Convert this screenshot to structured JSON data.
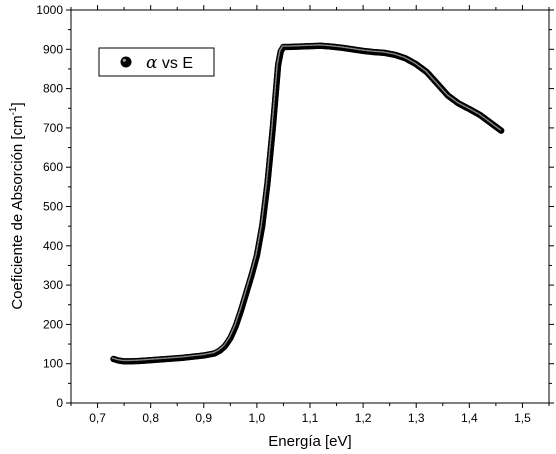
{
  "chart_data": {
    "type": "scatter",
    "title": "",
    "xlabel": "Energía [eV]",
    "ylabel_main": "Coeficiente de Absorción [cm",
    "ylabel_sup": "-1",
    "ylabel_close": "]",
    "xlim": [
      0.65,
      1.55
    ],
    "ylim": [
      0,
      1000
    ],
    "xticks": [
      "0,7",
      "0,8",
      "0,9",
      "1,0",
      "1,1",
      "1,2",
      "1,3",
      "1,4",
      "1,5"
    ],
    "xtick_values": [
      0.7,
      0.8,
      0.9,
      1.0,
      1.1,
      1.2,
      1.3,
      1.4,
      1.5
    ],
    "yticks": [
      "0",
      "100",
      "200",
      "300",
      "400",
      "500",
      "600",
      "700",
      "800",
      "900",
      "1000"
    ],
    "ytick_values": [
      0,
      100,
      200,
      300,
      400,
      500,
      600,
      700,
      800,
      900,
      1000
    ],
    "grid": false,
    "legend_placement": "top-left",
    "series": [
      {
        "name_symbol": "α",
        "name_rest": " vs E",
        "color": "#000000",
        "x": [
          0.73,
          0.74,
          0.75,
          0.76,
          0.78,
          0.8,
          0.82,
          0.84,
          0.86,
          0.88,
          0.9,
          0.92,
          0.93,
          0.94,
          0.95,
          0.96,
          0.97,
          0.98,
          0.99,
          1.0,
          1.01,
          1.02,
          1.03,
          1.04,
          1.045,
          1.05,
          1.06,
          1.08,
          1.1,
          1.12,
          1.14,
          1.16,
          1.18,
          1.2,
          1.22,
          1.24,
          1.26,
          1.28,
          1.3,
          1.32,
          1.34,
          1.36,
          1.38,
          1.4,
          1.42,
          1.44,
          1.46
        ],
        "y": [
          112,
          108,
          106,
          106,
          107,
          109,
          111,
          113,
          115,
          118,
          121,
          126,
          133,
          145,
          165,
          195,
          235,
          280,
          325,
          375,
          450,
          560,
          700,
          860,
          895,
          906,
          906,
          907,
          908,
          909,
          907,
          904,
          900,
          896,
          893,
          891,
          886,
          877,
          862,
          842,
          812,
          782,
          762,
          748,
          733,
          713,
          693
        ]
      }
    ]
  }
}
